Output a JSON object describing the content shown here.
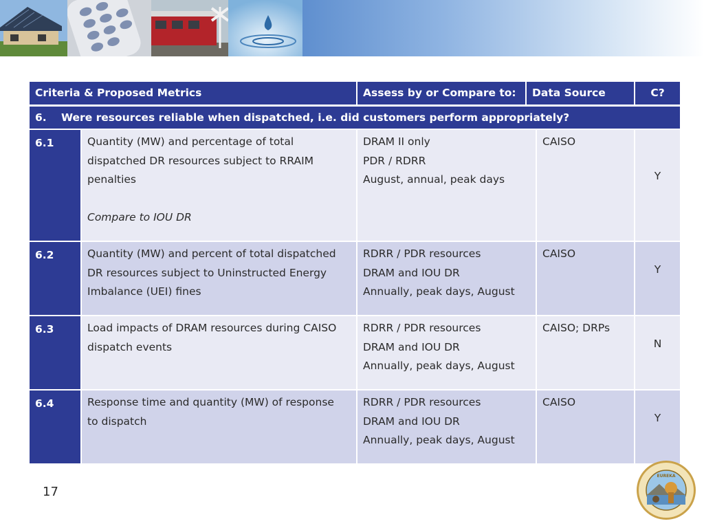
{
  "table": {
    "headers": {
      "criteria": "Criteria & Proposed Metrics",
      "assess": "Assess by or Compare to:",
      "source": "Data Source",
      "c": "C?"
    },
    "section": {
      "number": "6.",
      "question": "Were resources reliable when dispatched, i.e. did customers perform appropriately?"
    },
    "rows": [
      {
        "id": "6.1",
        "metric_lines": [
          "Quantity (MW) and percentage of total",
          "dispatched DR resources subject to RRAIM",
          "penalties"
        ],
        "metric_note": "Compare to IOU DR",
        "assess_lines": [
          "DRAM II only",
          "PDR / RDRR",
          "August, annual, peak days"
        ],
        "source": "CAISO",
        "c": "Y"
      },
      {
        "id": "6.2",
        "metric_lines": [
          "Quantity (MW) and percent of total dispatched",
          "DR resources subject to Uninstructed Energy",
          "Imbalance (UEI) fines"
        ],
        "assess_lines": [
          "RDRR / PDR resources",
          "DRAM and IOU DR",
          "Annually, peak days, August"
        ],
        "source": "CAISO",
        "c": "Y"
      },
      {
        "id": "6.3",
        "metric_lines": [
          "Load impacts of DRAM resources during CAISO",
          "dispatch events"
        ],
        "assess_lines": [
          "RDRR / PDR resources",
          "DRAM and IOU DR",
          "Annually, peak days, August"
        ],
        "source": "CAISO; DRPs",
        "c": "N"
      },
      {
        "id": "6.4",
        "metric_lines": [
          "Response time and quantity (MW) of response",
          "to dispatch"
        ],
        "assess_lines": [
          "RDRR / PDR resources",
          "DRAM and IOU DR",
          "Annually, peak days, August"
        ],
        "source": "CAISO",
        "c": "Y"
      }
    ]
  },
  "footer": {
    "page_number": "17"
  },
  "banner": {
    "photos": [
      "solar-house-photo",
      "phone-keypad-photo",
      "train-crossing-photo",
      "water-drop-photo"
    ],
    "gradient": [
      "#5f8fcf",
      "#ffffff"
    ]
  },
  "colors": {
    "header_bg": "#2d3b94",
    "row_light": "#e9eaf4",
    "row_dark": "#d0d3ea"
  },
  "logo": {
    "name": "state-seal-icon",
    "text": "PUBLIC UTILITIES COMMISSION · STATE OF CALIFORNIA · EUREKA"
  }
}
